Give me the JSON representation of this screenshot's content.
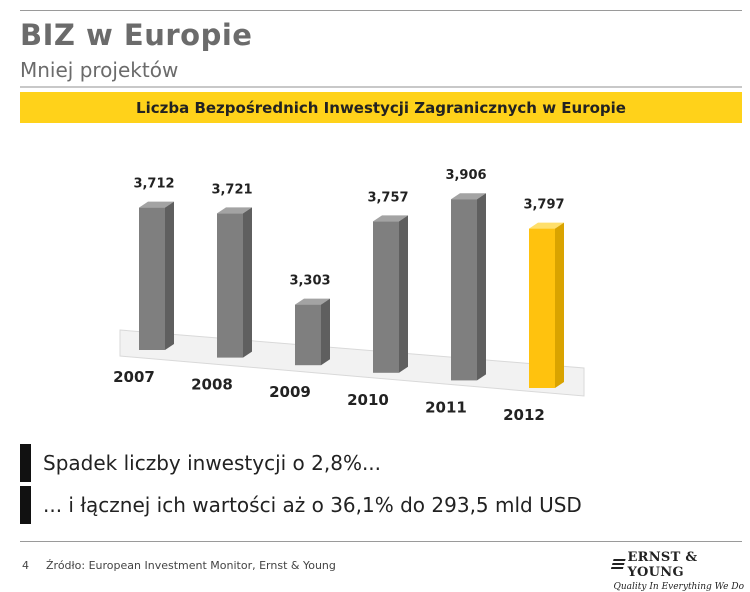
{
  "slide": {
    "title": "BIZ w Europie",
    "subtitle": "Mniej projektów",
    "banner": "Liczba Bezpośrednich Inwestycji Zagranicznych w Europie",
    "bullets": [
      "Spadek liczby inwestycji o 2,8%...",
      "... i łącznej ich wartości aż o 36,1% do 293,5 mld USD"
    ],
    "page_number": "4",
    "source": "Źródło: European Investment Monitor, Ernst & Young",
    "logo": {
      "name": "ERNST & YOUNG",
      "tagline": "Quality In Everything We Do"
    }
  },
  "colors": {
    "accent": "#ffd21a",
    "bar_gray": "#7f7f7f",
    "bar_highlight": "#ffc20e"
  },
  "chart_data": {
    "type": "bar",
    "categories": [
      "2007",
      "2008",
      "2009",
      "2010",
      "2011",
      "2012"
    ],
    "values": [
      3712,
      3721,
      3303,
      3757,
      3906,
      3797
    ],
    "value_labels": [
      "3,712",
      "3,721",
      "3,303",
      "3,757",
      "3,906",
      "3,797"
    ],
    "highlight_category": "2012",
    "title": "Liczba Bezpośrednich Inwestycji Zagranicznych w Europie",
    "xlabel": "",
    "ylabel": "",
    "ylim": [
      3000,
      4000
    ],
    "grid": false,
    "legend": "none",
    "style": "3d"
  }
}
